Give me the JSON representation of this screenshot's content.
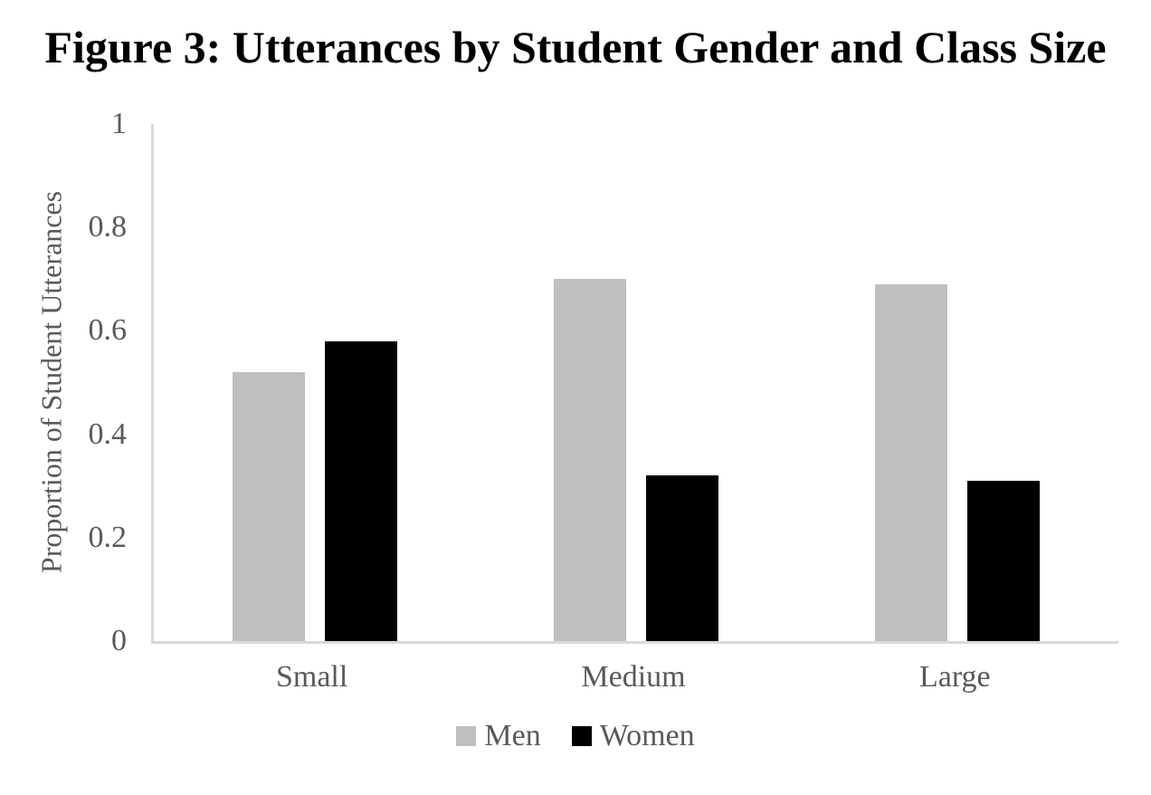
{
  "figure": {
    "title": "Figure 3: Utterances by Student Gender and Class Size"
  },
  "chart_data": {
    "type": "bar",
    "title": "Figure 3: Utterances by Student Gender and Class Size",
    "categories": [
      "Small",
      "Medium",
      "Large"
    ],
    "series": [
      {
        "name": "Men",
        "color": "#bfbfbf",
        "values": [
          0.52,
          0.7,
          0.69
        ]
      },
      {
        "name": "Women",
        "color": "#000000",
        "values": [
          0.58,
          0.32,
          0.31
        ]
      }
    ],
    "xlabel": "",
    "ylabel": "Proportion of Student Utterances",
    "ylim": [
      0,
      1
    ],
    "yticks": [
      0,
      0.2,
      0.4,
      0.6,
      0.8,
      1
    ],
    "ytick_labels": [
      "0",
      "0.2",
      "0.4",
      "0.6",
      "0.8",
      "1"
    ],
    "grid": false,
    "legend_position": "bottom",
    "colors": {
      "axis_line": "#d9d9d9",
      "tick_text": "#595959",
      "axis_title_text": "#595959",
      "legend_text": "#595959",
      "title_text": "#000000",
      "background": "#ffffff"
    }
  }
}
